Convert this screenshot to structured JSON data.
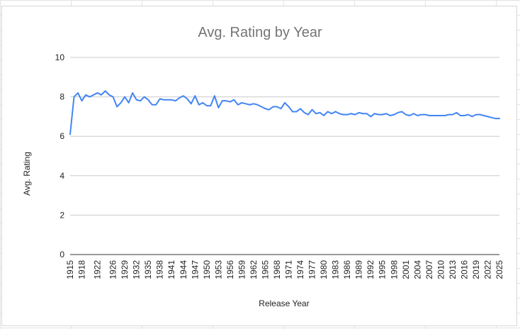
{
  "chart_data": {
    "type": "line",
    "title": "Avg. Rating by Year",
    "xlabel": "Release Year",
    "ylabel": "Avg. Rating",
    "ylim": [
      0,
      10
    ],
    "yticks": [
      0,
      2,
      4,
      6,
      8,
      10
    ],
    "xlim": [
      1915,
      2025
    ],
    "xticks": [
      1915,
      1918,
      1922,
      1926,
      1929,
      1932,
      1935,
      1938,
      1941,
      1944,
      1947,
      1950,
      1953,
      1956,
      1959,
      1962,
      1965,
      1968,
      1971,
      1974,
      1977,
      1980,
      1983,
      1986,
      1989,
      1992,
      1995,
      1998,
      2001,
      2004,
      2007,
      2010,
      2013,
      2016,
      2019,
      2022,
      2025
    ],
    "grid": true,
    "legend": "none",
    "color": "#4285f4",
    "series": [
      {
        "x": [
          1915,
          1916,
          1917,
          1918,
          1919,
          1920,
          1921,
          1922,
          1923,
          1924,
          1925,
          1926,
          1927,
          1928,
          1929,
          1930,
          1931,
          1932,
          1933,
          1934,
          1935,
          1936,
          1937,
          1938,
          1939,
          1940,
          1941,
          1942,
          1943,
          1944,
          1945,
          1946,
          1947,
          1948,
          1949,
          1950,
          1951,
          1952,
          1953,
          1954,
          1955,
          1956,
          1957,
          1958,
          1959,
          1960,
          1961,
          1962,
          1963,
          1964,
          1965,
          1966,
          1967,
          1968,
          1969,
          1970,
          1971,
          1972,
          1973,
          1974,
          1975,
          1976,
          1977,
          1978,
          1979,
          1980,
          1981,
          1982,
          1983,
          1984,
          1985,
          1986,
          1987,
          1988,
          1989,
          1990,
          1991,
          1992,
          1993,
          1994,
          1995,
          1996,
          1997,
          1998,
          1999,
          2000,
          2001,
          2002,
          2003,
          2004,
          2005,
          2006,
          2007,
          2008,
          2009,
          2010,
          2011,
          2012,
          2013,
          2014,
          2015,
          2016,
          2017,
          2018,
          2019,
          2020,
          2021,
          2022,
          2023,
          2024,
          2025
        ],
        "values": [
          6.1,
          8.0,
          8.2,
          7.8,
          8.1,
          8.0,
          8.1,
          8.2,
          8.1,
          8.3,
          8.1,
          8.0,
          7.5,
          7.7,
          8.0,
          7.7,
          8.2,
          7.85,
          7.8,
          8.0,
          7.85,
          7.6,
          7.6,
          7.9,
          7.85,
          7.85,
          7.85,
          7.8,
          7.95,
          8.05,
          7.9,
          7.65,
          8.05,
          7.6,
          7.7,
          7.55,
          7.55,
          8.05,
          7.45,
          7.8,
          7.8,
          7.75,
          7.85,
          7.6,
          7.7,
          7.65,
          7.6,
          7.65,
          7.6,
          7.5,
          7.4,
          7.35,
          7.5,
          7.5,
          7.4,
          7.7,
          7.5,
          7.25,
          7.25,
          7.4,
          7.2,
          7.1,
          7.35,
          7.15,
          7.2,
          7.05,
          7.25,
          7.15,
          7.25,
          7.15,
          7.1,
          7.1,
          7.15,
          7.1,
          7.2,
          7.15,
          7.15,
          7.0,
          7.15,
          7.1,
          7.1,
          7.15,
          7.05,
          7.1,
          7.2,
          7.25,
          7.1,
          7.05,
          7.15,
          7.05,
          7.1,
          7.1,
          7.05,
          7.05,
          7.05,
          7.05,
          7.05,
          7.1,
          7.1,
          7.2,
          7.05,
          7.05,
          7.1,
          7.0,
          7.1,
          7.1,
          7.05,
          7.0,
          6.95,
          6.9,
          6.9
        ]
      }
    ]
  }
}
